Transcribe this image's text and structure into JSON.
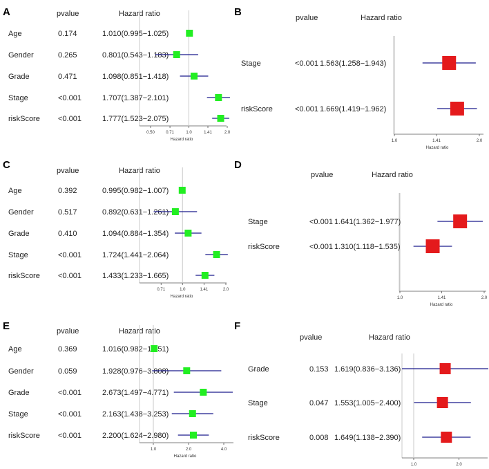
{
  "chart_data": [
    {
      "type": "forest",
      "panel": "A",
      "header_pvalue": "pvalue",
      "header_hr": "Hazard ratio",
      "xlabel": "Hazard ratio",
      "scale": "log",
      "xlim": [
        0.5,
        2.0
      ],
      "ticks": [
        {
          "v": 0.5,
          "l": "0.50"
        },
        {
          "v": 0.71,
          "l": "0.71"
        },
        {
          "v": 1.0,
          "l": "1.0"
        },
        {
          "v": 1.41,
          "l": "1.41"
        },
        {
          "v": 2.0,
          "l": "2.0"
        }
      ],
      "marker_color": "#22ee22",
      "rows": [
        {
          "label": "Age",
          "pvalue": "0.174",
          "hr_text": "1.010(0.995−1.025)",
          "hr": 1.01,
          "lo": 0.995,
          "hi": 1.025
        },
        {
          "label": "Gender",
          "pvalue": "0.265",
          "hr_text": "0.801(0.543−1.183)",
          "hr": 0.801,
          "lo": 0.543,
          "hi": 1.183
        },
        {
          "label": "Grade",
          "pvalue": "0.471",
          "hr_text": "1.098(0.851−1.418)",
          "hr": 1.098,
          "lo": 0.851,
          "hi": 1.418
        },
        {
          "label": "Stage",
          "pvalue": "<0.001",
          "hr_text": "1.707(1.387−2.101)",
          "hr": 1.707,
          "lo": 1.387,
          "hi": 2.101
        },
        {
          "label": "riskScore",
          "pvalue": "<0.001",
          "hr_text": "1.777(1.523−2.075)",
          "hr": 1.777,
          "lo": 1.523,
          "hi": 2.075
        }
      ]
    },
    {
      "type": "forest",
      "panel": "B",
      "header_pvalue": "pvalue",
      "header_hr": "Hazard ratio",
      "xlabel": "Hazard ratio",
      "scale": "log",
      "xlim": [
        1.0,
        2.0
      ],
      "ticks": [
        {
          "v": 1.0,
          "l": "1.0"
        },
        {
          "v": 1.41,
          "l": "1.41"
        },
        {
          "v": 2.0,
          "l": "2.0"
        }
      ],
      "marker_color": "#e41a1c",
      "rows": [
        {
          "label": "Stage",
          "pvalue": "<0.001",
          "hr_text": "1.563(1.258−1.943)",
          "hr": 1.563,
          "lo": 1.258,
          "hi": 1.943
        },
        {
          "label": "riskScore",
          "pvalue": "<0.001",
          "hr_text": "1.669(1.419−1.962)",
          "hr": 1.669,
          "lo": 1.419,
          "hi": 1.962
        }
      ]
    },
    {
      "type": "forest",
      "panel": "C",
      "header_pvalue": "pvalue",
      "header_hr": "Hazard ratio",
      "xlabel": "Hazard ratio",
      "scale": "log",
      "xlim": [
        0.6,
        2.0
      ],
      "ticks": [
        {
          "v": 0.71,
          "l": "0.71"
        },
        {
          "v": 1.0,
          "l": "1.0"
        },
        {
          "v": 1.41,
          "l": "1.41"
        },
        {
          "v": 2.0,
          "l": "2.0"
        }
      ],
      "marker_color": "#22ee22",
      "rows": [
        {
          "label": "Age",
          "pvalue": "0.392",
          "hr_text": "0.995(0.982−1.007)",
          "hr": 0.995,
          "lo": 0.982,
          "hi": 1.007
        },
        {
          "label": "Gender",
          "pvalue": "0.517",
          "hr_text": "0.892(0.631−1.261)",
          "hr": 0.892,
          "lo": 0.631,
          "hi": 1.261
        },
        {
          "label": "Grade",
          "pvalue": "0.410",
          "hr_text": "1.094(0.884−1.354)",
          "hr": 1.094,
          "lo": 0.884,
          "hi": 1.354
        },
        {
          "label": "Stage",
          "pvalue": "<0.001",
          "hr_text": "1.724(1.441−2.064)",
          "hr": 1.724,
          "lo": 1.441,
          "hi": 2.064
        },
        {
          "label": "riskScore",
          "pvalue": "<0.001",
          "hr_text": "1.433(1.233−1.665)",
          "hr": 1.433,
          "lo": 1.233,
          "hi": 1.665
        }
      ]
    },
    {
      "type": "forest",
      "panel": "D",
      "header_pvalue": "pvalue",
      "header_hr": "Hazard ratio",
      "xlabel": "Hazard ratio",
      "scale": "log",
      "xlim": [
        1.0,
        2.0
      ],
      "ticks": [
        {
          "v": 1.0,
          "l": "1.0"
        },
        {
          "v": 1.41,
          "l": "1.41"
        },
        {
          "v": 2.0,
          "l": "2.0"
        }
      ],
      "marker_color": "#e41a1c",
      "rows": [
        {
          "label": "Stage",
          "pvalue": "<0.001",
          "hr_text": "1.641(1.362−1.977)",
          "hr": 1.641,
          "lo": 1.362,
          "hi": 1.977
        },
        {
          "label": "riskScore",
          "pvalue": "<0.001",
          "hr_text": "1.310(1.118−1.535)",
          "hr": 1.31,
          "lo": 1.118,
          "hi": 1.535
        }
      ]
    },
    {
      "type": "forest",
      "panel": "E",
      "header_pvalue": "pvalue",
      "header_hr": "Hazard ratio",
      "xlabel": "Hazard ratio",
      "scale": "log",
      "xlim": [
        1.0,
        4.0
      ],
      "ticks": [
        {
          "v": 1.0,
          "l": "1.0"
        },
        {
          "v": 2.0,
          "l": "2.0"
        },
        {
          "v": 4.0,
          "l": "4.0"
        }
      ],
      "marker_color": "#22ee22",
      "rows": [
        {
          "label": "Age",
          "pvalue": "0.369",
          "hr_text": "1.016(0.982−1.051)",
          "hr": 1.016,
          "lo": 0.982,
          "hi": 1.051
        },
        {
          "label": "Gender",
          "pvalue": "0.059",
          "hr_text": "1.928(0.976−3.808)",
          "hr": 1.928,
          "lo": 0.976,
          "hi": 3.808
        },
        {
          "label": "Grade",
          "pvalue": "<0.001",
          "hr_text": "2.673(1.497−4.771)",
          "hr": 2.673,
          "lo": 1.497,
          "hi": 4.771
        },
        {
          "label": "Stage",
          "pvalue": "<0.001",
          "hr_text": "2.163(1.438−3.253)",
          "hr": 2.163,
          "lo": 1.438,
          "hi": 3.253
        },
        {
          "label": "riskScore",
          "pvalue": "<0.001",
          "hr_text": "2.200(1.624−2.980)",
          "hr": 2.2,
          "lo": 1.624,
          "hi": 2.98
        }
      ]
    },
    {
      "type": "forest",
      "panel": "F",
      "header_pvalue": "pvalue",
      "header_hr": "Hazard ratio",
      "xlabel": "Hazard ratio",
      "scale": "log",
      "xlim": [
        1.0,
        3.1
      ],
      "ticks": [
        {
          "v": 1.0,
          "l": "1.0"
        },
        {
          "v": 2.0,
          "l": "2.0"
        }
      ],
      "marker_color": "#e41a1c",
      "rows": [
        {
          "label": "Grade",
          "pvalue": "0.153",
          "hr_text": "1.619(0.836−3.136)",
          "hr": 1.619,
          "lo": 0.836,
          "hi": 3.136
        },
        {
          "label": "Stage",
          "pvalue": "0.047",
          "hr_text": "1.553(1.005−2.400)",
          "hr": 1.553,
          "lo": 1.005,
          "hi": 2.4
        },
        {
          "label": "riskScore",
          "pvalue": "0.008",
          "hr_text": "1.649(1.138−2.390)",
          "hr": 1.649,
          "lo": 1.138,
          "hi": 2.39
        }
      ]
    }
  ]
}
